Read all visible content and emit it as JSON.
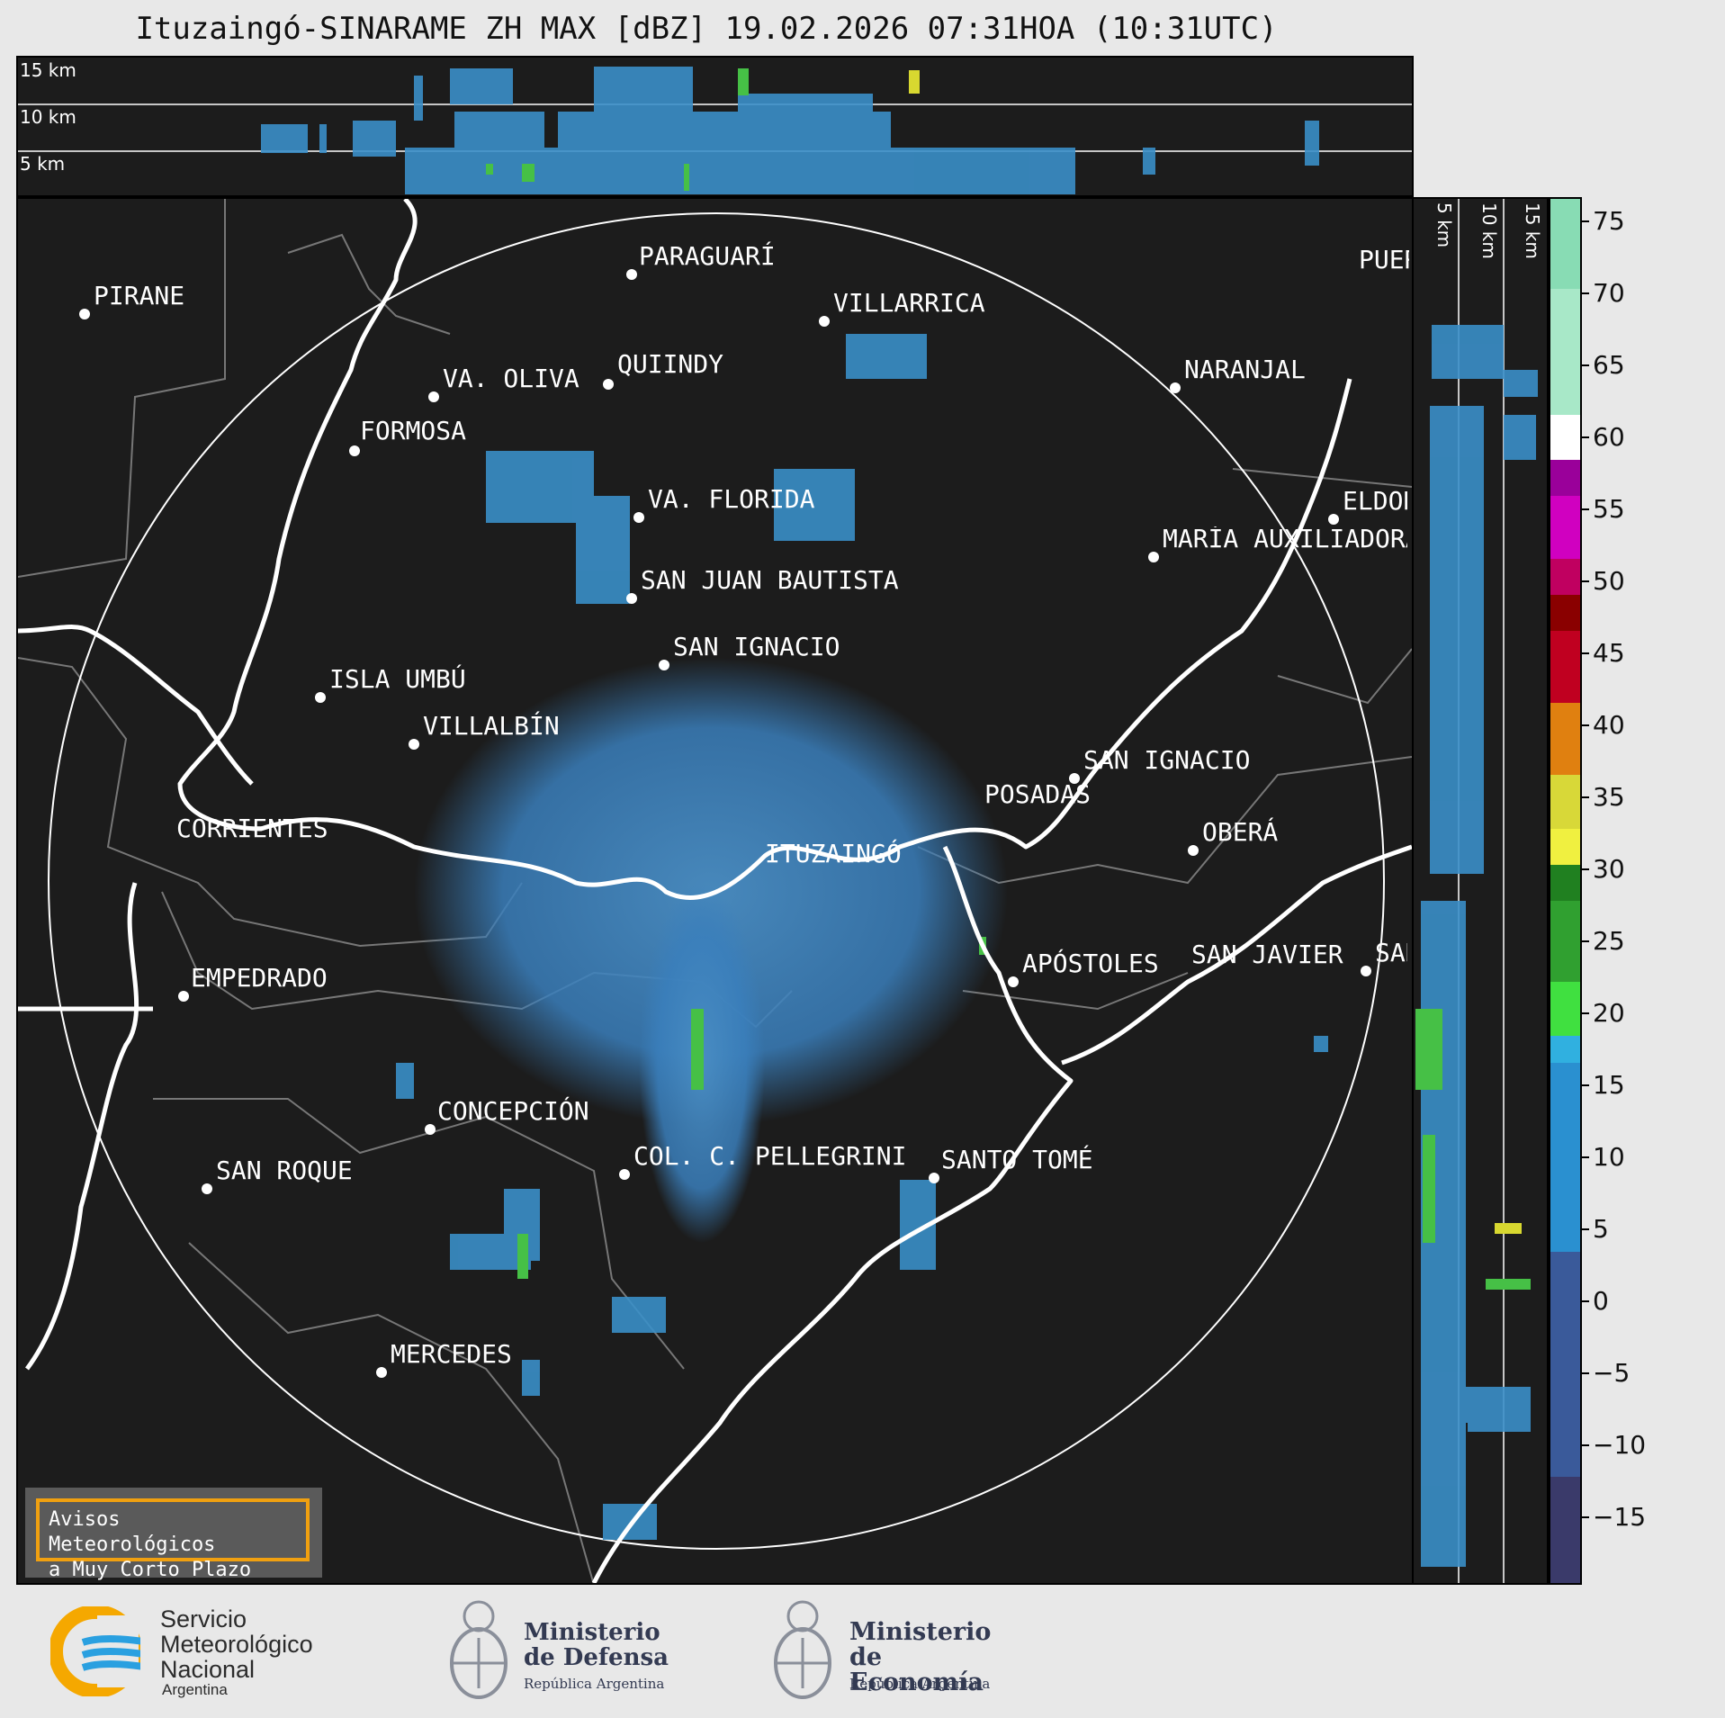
{
  "title": "Ituzaingó-SINARAME ZH MAX [dBZ] 19.02.2026 07:31HOA (10:31UTC)",
  "height_levels": [
    "15 km",
    "10 km",
    "5 km"
  ],
  "colorbar": {
    "ticks": [
      "75",
      "70",
      "65",
      "60",
      "55",
      "50",
      "45",
      "40",
      "35",
      "30",
      "25",
      "20",
      "15",
      "10",
      "5",
      "0",
      "−5",
      "−10",
      "−15"
    ]
  },
  "cities": [
    {
      "name": "PARAGUARÍ"
    },
    {
      "name": "PIRANE"
    },
    {
      "name": "VILLARRICA"
    },
    {
      "name": "QUIINDY"
    },
    {
      "name": "VA. OLIVA"
    },
    {
      "name": "NARANJAL"
    },
    {
      "name": "FORMOSA"
    },
    {
      "name": "VA. FLORIDA"
    },
    {
      "name": "ELDORADO"
    },
    {
      "name": "MARÍA AUXILIADORA"
    },
    {
      "name": "SAN JUAN BAUTISTA"
    },
    {
      "name": "SAN IGNACIO"
    },
    {
      "name": "ISLA UMBÚ"
    },
    {
      "name": "VILLALBÍN"
    },
    {
      "name": "SAN IGNACIO"
    },
    {
      "name": "POSADAS"
    },
    {
      "name": "ITUZAINGÓ"
    },
    {
      "name": "CORRIENTES"
    },
    {
      "name": "OBERÁ"
    },
    {
      "name": "APÓSTOLES"
    },
    {
      "name": "SAN JAVIER"
    },
    {
      "name": "SAN"
    },
    {
      "name": "EMPEDRADO"
    },
    {
      "name": "CONCEPCIÓN"
    },
    {
      "name": "COL. C. PELLEGRINI"
    },
    {
      "name": "SANTO TOMÉ"
    },
    {
      "name": "SAN ROQUE"
    },
    {
      "name": "MERCEDES"
    },
    {
      "name": "PUERTO"
    }
  ],
  "avisos": {
    "line1": "Avisos Meteorológicos",
    "line2": "a Muy Corto Plazo"
  },
  "logos": {
    "smn": {
      "line1": "Servicio",
      "line2": "Meteorológico",
      "line3": "Nacional",
      "line4": "Argentina",
      "colors": [
        "#f5a800",
        "#2aa0e0"
      ]
    },
    "defensa": {
      "line1": "Ministerio",
      "line2": "de Defensa",
      "sub": "República Argentina",
      "icon": "national-coat-of-arms-icon"
    },
    "economia": {
      "line1": "Ministerio",
      "line2": "de Economía",
      "sub": "República Argentina",
      "icon": "national-coat-of-arms-icon"
    }
  }
}
